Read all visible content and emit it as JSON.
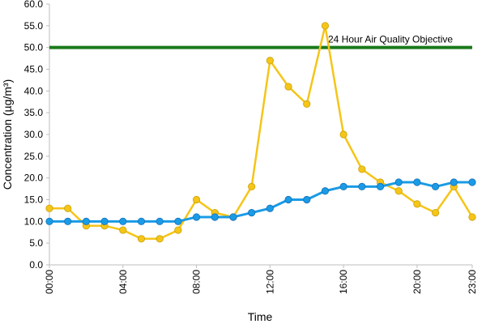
{
  "chart_data": {
    "type": "line",
    "xlabel": "Time",
    "ylabel": "Concentration (µg/m³)",
    "ylim": [
      0,
      60
    ],
    "y_ticks": [
      "0.0",
      "5.0",
      "10.0",
      "15.0",
      "20.0",
      "25.0",
      "30.0",
      "35.0",
      "40.0",
      "45.0",
      "50.0",
      "55.0",
      "60.0"
    ],
    "x_ticks": [
      "00:00",
      "04:00",
      "08:00",
      "12:00",
      "16:00",
      "20:00",
      "23:00"
    ],
    "x_tick_hours": [
      0,
      4,
      8,
      12,
      16,
      20,
      23
    ],
    "x": [
      "00:00",
      "01:00",
      "02:00",
      "03:00",
      "04:00",
      "05:00",
      "06:00",
      "07:00",
      "08:00",
      "09:00",
      "10:00",
      "11:00",
      "12:00",
      "13:00",
      "14:00",
      "15:00",
      "16:00",
      "17:00",
      "18:00",
      "19:00",
      "20:00",
      "21:00",
      "22:00",
      "23:00"
    ],
    "series": [
      {
        "color": "#f5c518",
        "values": [
          13,
          13,
          9,
          9,
          8,
          6,
          6,
          8,
          15,
          12,
          11,
          18,
          47,
          41,
          37,
          55,
          30,
          22,
          19,
          17,
          14,
          12,
          18,
          11
        ]
      },
      {
        "color": "#1a9be6",
        "values": [
          10,
          10,
          10,
          10,
          10,
          10,
          10,
          10,
          11,
          11,
          11,
          12,
          13,
          15,
          15,
          17,
          18,
          18,
          18,
          19,
          19,
          18,
          19,
          19
        ]
      }
    ],
    "reference_line": {
      "value": 50,
      "label": "24 Hour Air Quality Objective",
      "color": "#1a7a1a"
    },
    "grid": false,
    "legend": "none"
  }
}
